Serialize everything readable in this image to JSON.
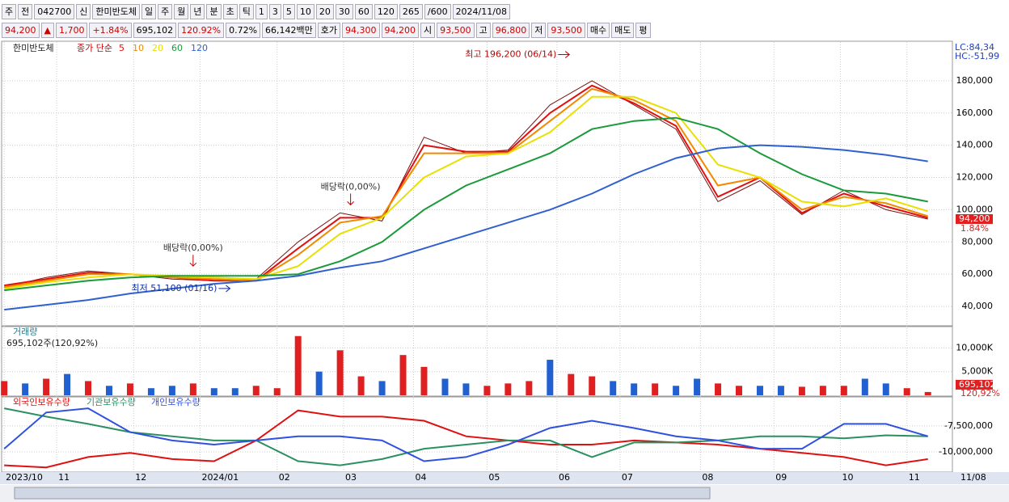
{
  "toolbar": {
    "items": [
      "주",
      "전",
      "042700",
      "신",
      "한미반도체",
      "일",
      "주",
      "월",
      "년",
      "분",
      "초",
      "틱",
      "1",
      "3",
      "5",
      "10",
      "20",
      "30",
      "60",
      "120",
      "265",
      "/600",
      "2024/11/08"
    ]
  },
  "quote": {
    "items": [
      {
        "text": "94,200",
        "color": "#d00000"
      },
      {
        "text": "▲",
        "color": "#d00000"
      },
      {
        "text": "1,700",
        "color": "#d00000"
      },
      {
        "text": "+1.84%",
        "color": "#d00000"
      },
      {
        "text": "695,102",
        "color": "#000000"
      },
      {
        "text": "120.92%",
        "color": "#d00000"
      },
      {
        "text": "0.72%",
        "color": "#000000"
      },
      {
        "text": "66,142백만",
        "color": "#000000"
      },
      {
        "text": "호가",
        "color": "#000000"
      },
      {
        "text": "94,300",
        "color": "#d00000"
      },
      {
        "text": "94,200",
        "color": "#d00000"
      },
      {
        "text": "시",
        "color": "#000000"
      },
      {
        "text": "93,500",
        "color": "#d00000"
      },
      {
        "text": "고",
        "color": "#000000"
      },
      {
        "text": "96,800",
        "color": "#d00000"
      },
      {
        "text": "저",
        "color": "#000000"
      },
      {
        "text": "93,500",
        "color": "#d00000"
      },
      {
        "text": "매수",
        "color": "#000000"
      },
      {
        "text": "매도",
        "color": "#000000"
      },
      {
        "text": "평",
        "color": "#000000"
      }
    ]
  },
  "chart_data": [
    {
      "type": "line",
      "symbol": "한미반도체",
      "legend_prefix": "종가 단순",
      "lc_hc": [
        "LC:84,34",
        "HC:-51,99"
      ],
      "x": [
        0,
        12,
        24,
        36,
        48,
        60,
        72,
        84,
        96,
        108,
        120,
        132,
        144,
        156,
        168,
        180,
        192,
        204,
        216,
        228,
        240,
        252,
        264
      ],
      "xlim": [
        -0.5,
        271
      ],
      "xticks": [
        {
          "value": 0,
          "label": "2023/10"
        },
        {
          "value": 15,
          "label": "11"
        },
        {
          "value": 37,
          "label": "12"
        },
        {
          "value": 56,
          "label": "2024/01"
        },
        {
          "value": 78,
          "label": "02"
        },
        {
          "value": 97,
          "label": "03"
        },
        {
          "value": 117,
          "label": "04"
        },
        {
          "value": 138,
          "label": "05"
        },
        {
          "value": 158,
          "label": "06"
        },
        {
          "value": 176,
          "label": "07"
        },
        {
          "value": 199,
          "label": "08"
        },
        {
          "value": 220,
          "label": "09"
        },
        {
          "value": 239,
          "label": "10"
        },
        {
          "value": 258,
          "label": "11"
        }
      ],
      "x_end_label": "11/08",
      "ylim": [
        28000,
        204000
      ],
      "yticks": [
        {
          "value": 40000,
          "label": "40,000"
        },
        {
          "value": 60000,
          "label": "60,000"
        },
        {
          "value": 80000,
          "label": "80,000"
        },
        {
          "value": 100000,
          "label": "100,000"
        },
        {
          "value": 120000,
          "label": "120,000"
        },
        {
          "value": 140000,
          "label": "140,000"
        },
        {
          "value": 160000,
          "label": "160,000"
        },
        {
          "value": 180000,
          "label": "180,000"
        }
      ],
      "grid": true,
      "close": {
        "color": "#7a1010",
        "values": [
          52000,
          58000,
          62000,
          60000,
          57000,
          56000,
          57000,
          80000,
          98000,
          93000,
          145000,
          135000,
          137000,
          165000,
          180000,
          165000,
          150000,
          105000,
          118000,
          97000,
          112000,
          100000,
          94200
        ]
      },
      "series": [
        {
          "name": "5",
          "color": "#e01010",
          "values": [
            53000,
            57000,
            61000,
            60000,
            58000,
            56000,
            56000,
            76000,
            95000,
            95000,
            140000,
            136000,
            136000,
            160000,
            177000,
            166000,
            152000,
            108000,
            120000,
            98000,
            110000,
            102000,
            95000
          ]
        },
        {
          "name": "10",
          "color": "#f08a00",
          "values": [
            52000,
            56000,
            60000,
            60000,
            58000,
            57000,
            56000,
            72000,
            92000,
            96000,
            135000,
            135000,
            135000,
            155000,
            175000,
            168000,
            155000,
            115000,
            120000,
            100000,
            108000,
            104000,
            96000
          ]
        },
        {
          "name": "20",
          "color": "#e8e000",
          "values": [
            51000,
            55000,
            58000,
            60000,
            59000,
            58000,
            57000,
            65000,
            85000,
            95000,
            120000,
            133000,
            135000,
            148000,
            170000,
            170000,
            160000,
            128000,
            120000,
            105000,
            102000,
            107000,
            99000
          ]
        },
        {
          "name": "60",
          "color": "#1a9a3a",
          "values": [
            50000,
            53000,
            56000,
            58000,
            59000,
            59000,
            59000,
            60000,
            68000,
            80000,
            100000,
            115000,
            125000,
            135000,
            150000,
            155000,
            157000,
            150000,
            135000,
            122000,
            112000,
            110000,
            105000
          ]
        },
        {
          "name": "120",
          "color": "#3060d0",
          "values": [
            38000,
            41000,
            44000,
            48000,
            51000,
            54000,
            56000,
            59000,
            64000,
            68000,
            76000,
            84000,
            92000,
            100000,
            110000,
            122000,
            132000,
            138000,
            140000,
            139000,
            137000,
            134000,
            130000
          ]
        }
      ],
      "annotations": [
        {
          "text": "최고 196,200 (06/14)",
          "x": 162,
          "y": 196200,
          "dir": "right"
        },
        {
          "text": "최저 51,100 (01/16)",
          "x": 65,
          "y": 51100,
          "dir": "right"
        },
        {
          "text": "배당락(0,00%)",
          "x": 54,
          "y": 62000,
          "dir": "down"
        },
        {
          "text": "배당락(0,00%)",
          "x": 99,
          "y": 100000,
          "dir": "down"
        }
      ],
      "price_label": {
        "value": 94200,
        "label": "94,200"
      },
      "change_label": "1.84%"
    },
    {
      "type": "bar",
      "title": "거래량",
      "subtitle": "695,102주(120,92%)",
      "x": [
        0,
        6,
        12,
        18,
        24,
        30,
        36,
        42,
        48,
        54,
        60,
        66,
        72,
        78,
        84,
        90,
        96,
        102,
        108,
        114,
        120,
        126,
        132,
        138,
        144,
        150,
        156,
        162,
        168,
        174,
        180,
        186,
        192,
        198,
        204,
        210,
        216,
        222,
        228,
        234,
        240,
        246,
        252,
        258,
        264
      ],
      "xlim": [
        -0.5,
        271
      ],
      "ylim": [
        0,
        14500000
      ],
      "yticks": [
        {
          "value": 5000000,
          "label": "5,000K"
        },
        {
          "value": 10000000,
          "label": "10,000K"
        }
      ],
      "values": [
        3000000,
        2500000,
        3500000,
        4500000,
        3000000,
        2000000,
        2500000,
        1500000,
        2000000,
        2500000,
        1500000,
        1500000,
        2000000,
        1500000,
        12500000,
        5000000,
        9500000,
        4000000,
        3000000,
        8500000,
        6000000,
        3500000,
        2500000,
        2000000,
        2500000,
        3000000,
        7500000,
        4500000,
        4000000,
        3000000,
        2500000,
        2500000,
        2000000,
        3500000,
        2500000,
        2000000,
        2000000,
        2000000,
        1800000,
        2000000,
        2000000,
        3500000,
        2500000,
        1500000,
        695102
      ],
      "colors": [
        "#e02020",
        "#2060d0",
        "#e02020",
        "#2060d0",
        "#e02020",
        "#2060d0",
        "#e02020",
        "#2060d0",
        "#2060d0",
        "#e02020",
        "#2060d0",
        "#2060d0",
        "#e02020",
        "#e02020",
        "#e02020",
        "#2060d0",
        "#e02020",
        "#e02020",
        "#2060d0",
        "#e02020",
        "#e02020",
        "#2060d0",
        "#2060d0",
        "#e02020",
        "#e02020",
        "#e02020",
        "#2060d0",
        "#e02020",
        "#e02020",
        "#2060d0",
        "#2060d0",
        "#e02020",
        "#2060d0",
        "#2060d0",
        "#e02020",
        "#e02020",
        "#2060d0",
        "#2060d0",
        "#e02020",
        "#e02020",
        "#e02020",
        "#2060d0",
        "#2060d0",
        "#e02020",
        "#e02020"
      ],
      "volume_label": {
        "value": 695102,
        "label": "695,102"
      },
      "ratio_label": "120,92%"
    },
    {
      "type": "line",
      "x": [
        0,
        12,
        24,
        36,
        48,
        60,
        72,
        84,
        96,
        108,
        120,
        132,
        144,
        156,
        168,
        180,
        192,
        204,
        216,
        228,
        240,
        252,
        264
      ],
      "xlim": [
        -0.5,
        271
      ],
      "ylim": [
        -11875000,
        -4775000
      ],
      "yticks": [
        {
          "value": -10000000,
          "label": "-10,000,000"
        },
        {
          "value": -7500000,
          "label": "-7,500,000"
        }
      ],
      "series": [
        {
          "name": "외국인보유수량",
          "color": "#e01010",
          "values": [
            -11300000,
            -11500000,
            -10500000,
            -10100000,
            -10700000,
            -10900000,
            -8900000,
            -6000000,
            -6600000,
            -6600000,
            -7000000,
            -8500000,
            -8900000,
            -9300000,
            -9300000,
            -8900000,
            -9100000,
            -9300000,
            -9700000,
            -10100000,
            -10500000,
            -11300000,
            -10700000
          ]
        },
        {
          "name": "기관보유수량",
          "color": "#2a9060",
          "values": [
            -5800000,
            -6600000,
            -7300000,
            -8100000,
            -8500000,
            -8900000,
            -8900000,
            -10900000,
            -11300000,
            -10700000,
            -9700000,
            -9300000,
            -8900000,
            -8900000,
            -10500000,
            -9100000,
            -9100000,
            -8900000,
            -8500000,
            -8500000,
            -8700000,
            -8400000,
            -8500000
          ]
        },
        {
          "name": "개인보유수량",
          "color": "#3050e0",
          "values": [
            -9700000,
            -6200000,
            -5800000,
            -8100000,
            -8900000,
            -9300000,
            -8900000,
            -8500000,
            -8500000,
            -8900000,
            -10900000,
            -10500000,
            -9300000,
            -7700000,
            -7000000,
            -7700000,
            -8500000,
            -8900000,
            -9700000,
            -9700000,
            -7300000,
            -7300000,
            -8500000
          ]
        }
      ]
    }
  ]
}
